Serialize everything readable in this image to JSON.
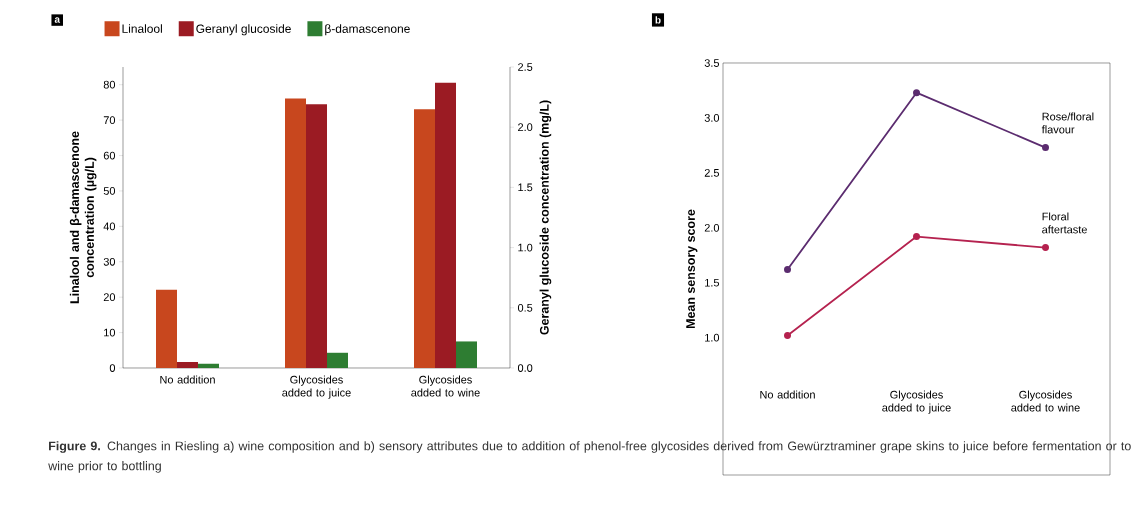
{
  "chart_data": [
    {
      "type": "bar",
      "title": "a",
      "categories": [
        "No addition",
        "Glycosides added to juice",
        "Glycosides added to wine"
      ],
      "series": [
        {
          "name": "Linalool",
          "color": "#c8471e",
          "values": [
            22.1,
            76.1,
            73.1
          ]
        },
        {
          "name": "Geranyl glucoside",
          "color": "#9b1b23",
          "values": [
            0.05,
            2.19,
            2.37
          ],
          "axis": "y2"
        },
        {
          "name": "β-damascenone",
          "color": "#2e7d32",
          "values": [
            1.2,
            4.3,
            7.5
          ]
        }
      ],
      "ylabel": "Linalool and β-damascenone concentration (µg/L)",
      "y2label": "Geranyl glucoside concentration (mg/L)",
      "ylim": [
        0,
        85
      ],
      "yticks": [
        0,
        10,
        20,
        30,
        40,
        50,
        60,
        70,
        80
      ],
      "y2lim": [
        0,
        2.5
      ],
      "y2ticks": [
        {
          "value": 0,
          "label": "0.0"
        },
        {
          "value": 0.5,
          "label": "0.5"
        },
        {
          "value": 1,
          "label": "1.0"
        },
        {
          "value": 1.5,
          "label": "1.5"
        },
        {
          "value": 2,
          "label": "2.0"
        },
        {
          "value": 2.5,
          "label": "2.5"
        }
      ],
      "legend": "top",
      "annotations": [
        "**Figure 9.** Changes in Riesling a) wine composition and b) sensory attributes due to addition of phenol-free glycosides derived from Gewürztraminer grape skins to juice before fermentation or to wine prior to bottling"
      ]
    },
    {
      "type": "line",
      "title": "b",
      "categories": [
        "No addition",
        "Glycosides added to juice",
        "Glycosides added to wine"
      ],
      "series": [
        {
          "name": "Rose/floral flavour",
          "color": "#5b2c6f",
          "values": [
            1.62,
            3.23,
            2.73
          ]
        },
        {
          "name": "Floral aftertaste",
          "color": "#b5224f",
          "values": [
            1.02,
            1.92,
            1.82
          ]
        }
      ],
      "ylabel": "Mean sensory score",
      "ylim": [
        -0.25,
        3.5
      ],
      "yticks": [
        {
          "value": 1,
          "label": "1.0"
        },
        {
          "value": 1.5,
          "label": "1.5"
        },
        {
          "value": 2,
          "label": "2.0"
        },
        {
          "value": 2.5,
          "label": "2.5"
        },
        {
          "value": 3,
          "label": "3.0"
        },
        {
          "value": 3.5,
          "label": "3.5"
        }
      ],
      "marker": "circle",
      "line_style": "solid"
    }
  ]
}
